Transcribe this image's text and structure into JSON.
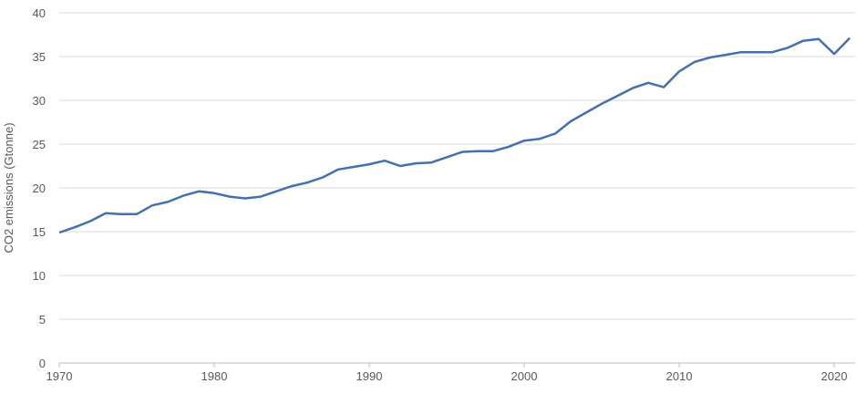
{
  "chart_data": {
    "type": "line",
    "title": "",
    "xlabel": "",
    "ylabel": "CO2 emissions (Gtonne)",
    "xlim": [
      1970,
      2021
    ],
    "ylim": [
      0,
      40
    ],
    "xticks": [
      1970,
      1980,
      1990,
      2000,
      2010,
      2020
    ],
    "yticks": [
      0,
      5,
      10,
      15,
      20,
      25,
      30,
      35,
      40
    ],
    "grid": "horizontal",
    "line_color": "#4470ae",
    "x": [
      1970,
      1971,
      1972,
      1973,
      1974,
      1975,
      1976,
      1977,
      1978,
      1979,
      1980,
      1981,
      1982,
      1983,
      1984,
      1985,
      1986,
      1987,
      1988,
      1989,
      1990,
      1991,
      1992,
      1993,
      1994,
      1995,
      1996,
      1997,
      1998,
      1999,
      2000,
      2001,
      2002,
      2003,
      2004,
      2005,
      2006,
      2007,
      2008,
      2009,
      2010,
      2011,
      2012,
      2013,
      2014,
      2015,
      2016,
      2017,
      2018,
      2019,
      2020,
      2021
    ],
    "values": [
      14.9,
      15.5,
      16.2,
      17.1,
      17.0,
      17.0,
      18.0,
      18.4,
      19.1,
      19.6,
      19.4,
      19.0,
      18.8,
      19.0,
      19.6,
      20.2,
      20.6,
      21.2,
      22.1,
      22.4,
      22.7,
      23.1,
      22.5,
      22.8,
      22.9,
      23.5,
      24.1,
      24.2,
      24.2,
      24.7,
      25.4,
      25.6,
      26.2,
      27.6,
      28.6,
      29.6,
      30.5,
      31.4,
      32.0,
      31.5,
      33.3,
      34.4,
      34.9,
      35.2,
      35.5,
      35.5,
      35.5,
      36.0,
      36.8,
      37.0,
      35.3,
      37.1
    ]
  }
}
